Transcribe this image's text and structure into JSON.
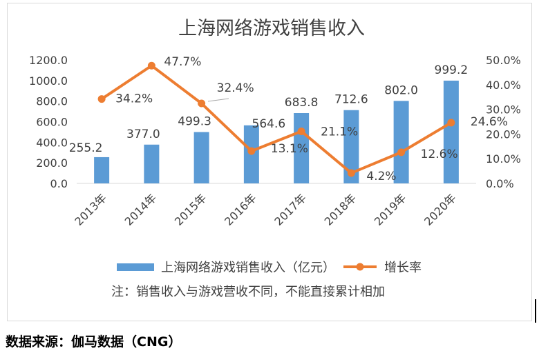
{
  "chart_data": {
    "type": "bar",
    "title": "上海网络游戏销售收入",
    "categories": [
      "2013年",
      "2014年",
      "2015年",
      "2016年",
      "2017年",
      "2018年",
      "2019年",
      "2020年"
    ],
    "series": [
      {
        "name": "上海网络游戏销售收入（亿元）",
        "type": "bar",
        "axis": "left",
        "color": "#5b9bd5",
        "values": [
          255.2,
          377.0,
          499.3,
          564.6,
          683.8,
          712.6,
          802.0,
          999.2
        ],
        "labels": [
          "255.2",
          "377.0",
          "499.3",
          "564.6",
          "683.8",
          "712.6",
          "802.0",
          "999.2"
        ]
      },
      {
        "name": "增长率",
        "type": "line",
        "axis": "right",
        "color": "#ed7d31",
        "values": [
          34.2,
          47.7,
          32.4,
          13.1,
          21.1,
          4.2,
          12.6,
          24.6
        ],
        "labels": [
          "34.2%",
          "47.7%",
          "32.4%",
          "13.1%",
          "21.1%",
          "4.2%",
          "12.6%",
          "24.6%"
        ]
      }
    ],
    "y_left": {
      "min": 0,
      "max": 1200,
      "step": 200,
      "ticks": [
        "0.0",
        "200.0",
        "400.0",
        "600.0",
        "800.0",
        "1000.0",
        "1200.0"
      ]
    },
    "y_right": {
      "min": 0,
      "max": 50,
      "step": 10,
      "ticks": [
        "0.0%",
        "10.0%",
        "20.0%",
        "30.0%",
        "40.0%",
        "50.0%"
      ]
    },
    "grid": false,
    "legend": "bottom",
    "note": "注：销售收入与游戏营收不同，不能直接累计相加"
  },
  "source": "数据来源：伽马数据（CNG）"
}
